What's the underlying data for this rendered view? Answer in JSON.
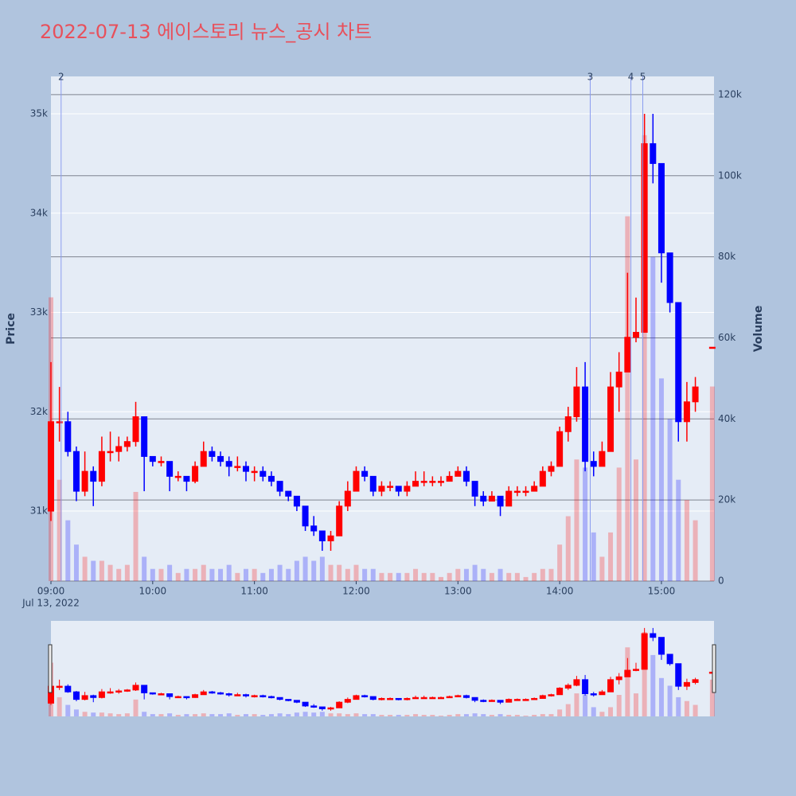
{
  "chart_data": {
    "type": "candlestick",
    "title": "2022-07-13 에이스토리 뉴스_공시 차트",
    "x": [
      "09:00",
      "09:05",
      "09:10",
      "09:15",
      "09:20",
      "09:25",
      "09:30",
      "09:35",
      "09:40",
      "09:45",
      "09:50",
      "09:55",
      "10:00",
      "10:05",
      "10:10",
      "10:15",
      "10:20",
      "10:25",
      "10:30",
      "10:35",
      "10:40",
      "10:45",
      "10:50",
      "10:55",
      "11:00",
      "11:05",
      "11:10",
      "11:15",
      "11:20",
      "11:25",
      "11:30",
      "11:35",
      "11:40",
      "11:45",
      "11:50",
      "11:55",
      "12:00",
      "12:05",
      "12:10",
      "12:15",
      "12:20",
      "12:25",
      "12:30",
      "12:35",
      "12:40",
      "12:45",
      "12:50",
      "12:55",
      "13:00",
      "13:05",
      "13:10",
      "13:15",
      "13:20",
      "13:25",
      "13:30",
      "13:35",
      "13:40",
      "13:45",
      "13:50",
      "13:55",
      "14:00",
      "14:05",
      "14:10",
      "14:15",
      "14:20",
      "14:25",
      "14:30",
      "14:35",
      "14:40",
      "14:45",
      "14:50",
      "14:55",
      "15:00",
      "15:05",
      "15:10",
      "15:15",
      "15:20",
      "15:30"
    ],
    "open": [
      31000,
      31900,
      31900,
      31600,
      31200,
      31400,
      31300,
      31600,
      31600,
      31650,
      31700,
      31950,
      31550,
      31500,
      31500,
      31350,
      31350,
      31300,
      31450,
      31600,
      31550,
      31500,
      31450,
      31450,
      31400,
      31400,
      31350,
      31300,
      31200,
      31150,
      31050,
      30850,
      30800,
      30700,
      30750,
      31050,
      31200,
      31400,
      31350,
      31200,
      31250,
      31250,
      31200,
      31250,
      31300,
      31300,
      31300,
      31300,
      31350,
      31400,
      31300,
      31150,
      31100,
      31150,
      31050,
      31200,
      31200,
      31200,
      31250,
      31400,
      31450,
      31800,
      31950,
      32250,
      31500,
      31450,
      31600,
      32250,
      32400,
      32750,
      32800,
      34700,
      34500,
      33600,
      33100,
      31900,
      32100,
      32650
    ],
    "high": [
      32500,
      32250,
      32000,
      31650,
      31600,
      31450,
      31750,
      31800,
      31750,
      31750,
      32100,
      31950,
      31550,
      31550,
      31500,
      31400,
      31350,
      31500,
      31700,
      31650,
      31600,
      31550,
      31550,
      31500,
      31450,
      31450,
      31400,
      31300,
      31200,
      31150,
      31050,
      30950,
      30800,
      30800,
      31100,
      31300,
      31450,
      31450,
      31350,
      31300,
      31300,
      31250,
      31300,
      31400,
      31400,
      31350,
      31350,
      31400,
      31450,
      31450,
      31300,
      31200,
      31200,
      31150,
      31250,
      31250,
      31250,
      31300,
      31450,
      31500,
      31850,
      32050,
      32450,
      32500,
      31600,
      31700,
      32400,
      32600,
      33400,
      33150,
      35000,
      35000,
      34500,
      33600,
      33100,
      32300,
      32350,
      32650
    ],
    "low": [
      30900,
      31700,
      31550,
      31100,
      31150,
      31050,
      31250,
      31500,
      31500,
      31600,
      31650,
      31200,
      31450,
      31450,
      31200,
      31300,
      31200,
      31280,
      31450,
      31500,
      31450,
      31350,
      31400,
      31300,
      31300,
      31300,
      31250,
      31150,
      31100,
      31000,
      30800,
      30750,
      30600,
      30600,
      30750,
      31000,
      31200,
      31300,
      31150,
      31150,
      31200,
      31150,
      31150,
      31250,
      31250,
      31250,
      31250,
      31300,
      31350,
      31250,
      31050,
      31050,
      31100,
      30950,
      31050,
      31150,
      31150,
      31200,
      31250,
      31350,
      31450,
      31700,
      31900,
      31400,
      31350,
      31450,
      31600,
      32000,
      32400,
      32700,
      32800,
      34300,
      33300,
      33000,
      31700,
      31700,
      32000,
      32650
    ],
    "close": [
      31900,
      31900,
      31600,
      31200,
      31400,
      31300,
      31600,
      31600,
      31650,
      31700,
      31950,
      31550,
      31500,
      31500,
      31350,
      31350,
      31300,
      31450,
      31600,
      31550,
      31500,
      31450,
      31450,
      31400,
      31400,
      31350,
      31300,
      31200,
      31150,
      31050,
      30850,
      30800,
      30700,
      30750,
      31050,
      31200,
      31400,
      31350,
      31200,
      31250,
      31250,
      31200,
      31250,
      31300,
      31300,
      31300,
      31300,
      31350,
      31400,
      31300,
      31150,
      31100,
      31150,
      31050,
      31200,
      31200,
      31200,
      31250,
      31400,
      31450,
      31800,
      31950,
      32250,
      31500,
      31450,
      31600,
      32250,
      32400,
      32750,
      32800,
      34700,
      34500,
      33600,
      33100,
      31900,
      32100,
      32250,
      32650
    ],
    "volume": [
      70000,
      25000,
      15000,
      9000,
      6000,
      5000,
      5000,
      4000,
      3000,
      4000,
      22000,
      6000,
      3000,
      3000,
      4000,
      2000,
      3000,
      3000,
      4000,
      3000,
      3000,
      4000,
      2000,
      3000,
      3000,
      2000,
      3000,
      4000,
      3000,
      5000,
      6000,
      5000,
      6000,
      4000,
      4000,
      3000,
      4000,
      3000,
      3000,
      2000,
      2000,
      2000,
      2000,
      3000,
      2000,
      2000,
      1000,
      2000,
      3000,
      3000,
      4000,
      3000,
      2000,
      3000,
      2000,
      2000,
      1000,
      2000,
      3000,
      3000,
      9000,
      16000,
      30000,
      28000,
      12000,
      6000,
      12000,
      28000,
      90000,
      30000,
      110000,
      80000,
      50000,
      40000,
      25000,
      20000,
      15000,
      48000
    ],
    "xlim": [
      "09:00",
      "15:31"
    ],
    "xticks": [
      "09:00",
      "10:00",
      "11:00",
      "12:00",
      "13:00",
      "14:00",
      "15:00"
    ],
    "x_date_label": "Jul 13, 2022",
    "ylim": [
      30295,
      35377
    ],
    "yticks": [
      {
        "value": 31000,
        "label": "31k"
      },
      {
        "value": 32000,
        "label": "32k"
      },
      {
        "value": 33000,
        "label": "33k"
      },
      {
        "value": 34000,
        "label": "34k"
      },
      {
        "value": 35000,
        "label": "35k"
      }
    ],
    "y2lim": [
      0,
      124500
    ],
    "y2ticks": [
      0,
      {
        "value": 20000,
        "label": "20k"
      },
      {
        "value": 40000,
        "label": "40k"
      },
      {
        "value": 60000,
        "label": "60k"
      },
      {
        "value": 80000,
        "label": "80k"
      },
      {
        "value": 100000,
        "label": "100k"
      },
      {
        "value": 120000,
        "label": "120k"
      }
    ],
    "y_label": "Price",
    "y2_label": "Volume",
    "increasing_color": "#ff0000",
    "decreasing_color": "#0000ff",
    "news": [
      {
        "x": "09:06",
        "label": "2"
      },
      {
        "x": "14:18",
        "label": "3"
      },
      {
        "x": "14:42",
        "label": "4"
      },
      {
        "x": "14:49",
        "label": "5"
      }
    ],
    "grid": true,
    "rangeslider": true
  }
}
